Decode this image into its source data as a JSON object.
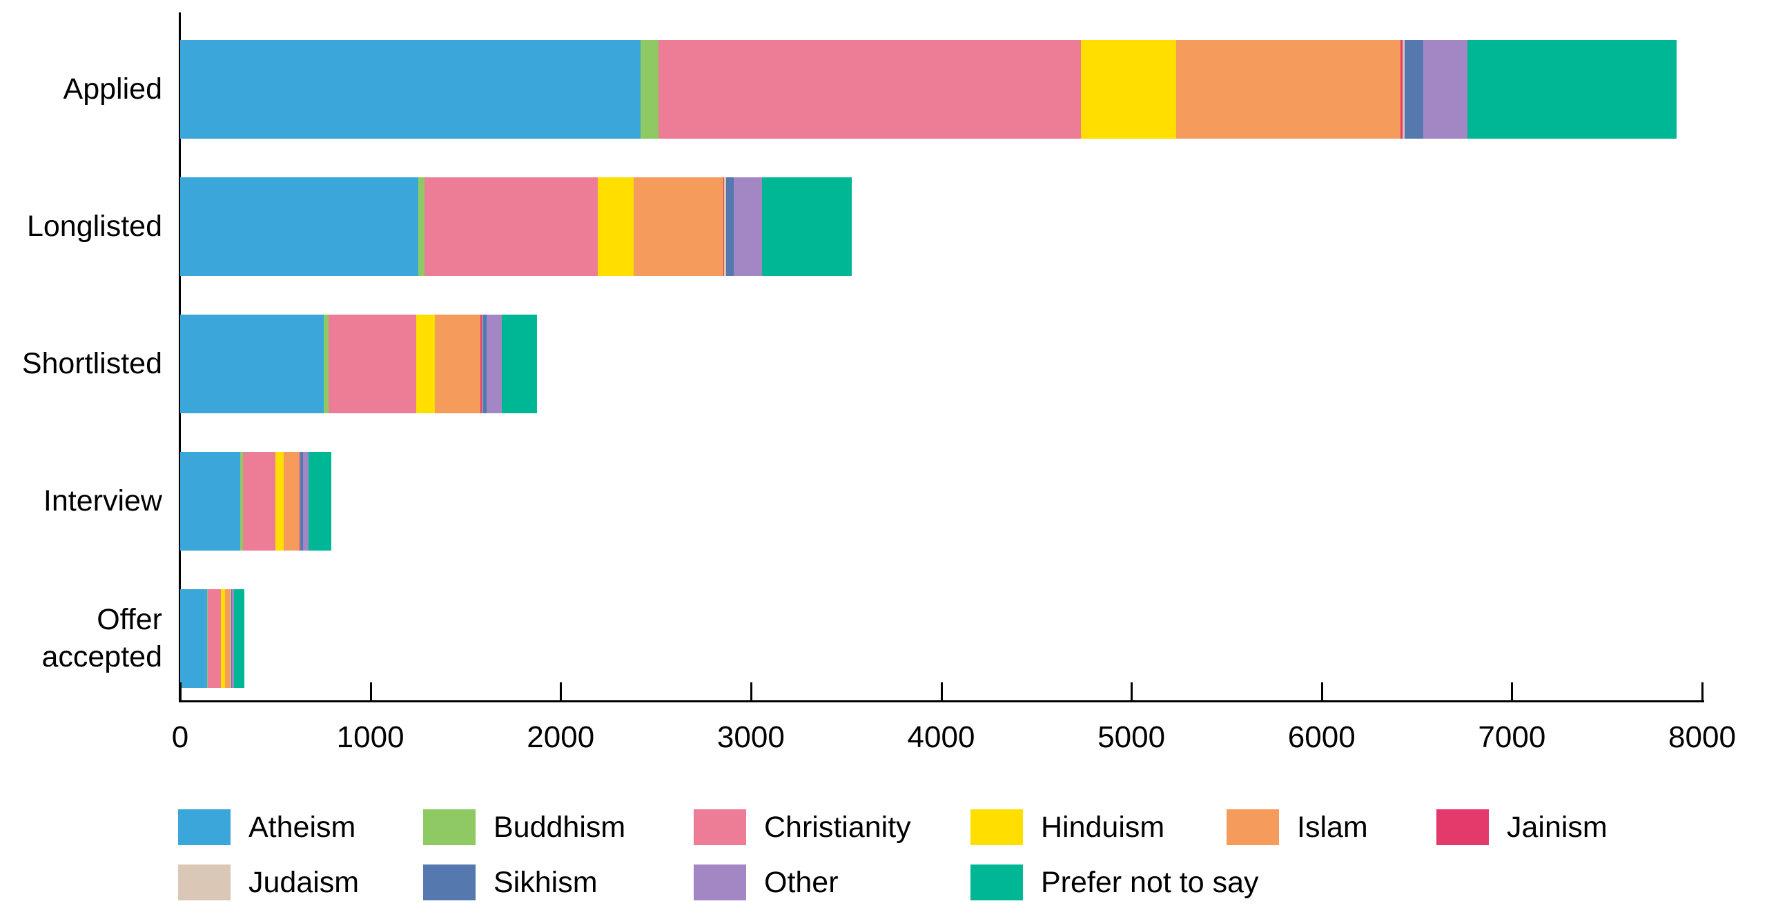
{
  "chart_data": {
    "type": "bar",
    "orientation": "horizontal",
    "stacked": true,
    "title": "",
    "xlabel": "",
    "ylabel": "",
    "grid": false,
    "legend_position": "bottom",
    "xlim": [
      0,
      8000
    ],
    "xticks": [
      0,
      1000,
      2000,
      3000,
      4000,
      5000,
      6000,
      7000,
      8000
    ],
    "xtick_labels": [
      "0",
      "1000",
      "2000",
      "3000",
      "4000",
      "5000",
      "6000",
      "7000",
      "8000"
    ],
    "categories": [
      "Applied",
      "Longlisted",
      "Shortlisted",
      "Interview",
      "Offer accepted"
    ],
    "series": [
      {
        "name": "Atheism",
        "color": "#3BA6D9",
        "values": [
          2420,
          1250,
          755,
          315,
          140
        ]
      },
      {
        "name": "Buddhism",
        "color": "#8FC964",
        "values": [
          95,
          35,
          25,
          15,
          5
        ]
      },
      {
        "name": "Christianity",
        "color": "#ED7D96",
        "values": [
          2220,
          910,
          460,
          170,
          70
        ]
      },
      {
        "name": "Hinduism",
        "color": "#FFDE00",
        "values": [
          500,
          190,
          100,
          45,
          20
        ]
      },
      {
        "name": "Islam",
        "color": "#F59C5C",
        "values": [
          1180,
          470,
          240,
          80,
          30
        ]
      },
      {
        "name": "Jainism",
        "color": "#E33A6B",
        "values": [
          10,
          5,
          5,
          2,
          1
        ]
      },
      {
        "name": "Judaism",
        "color": "#DAC7B6",
        "values": [
          10,
          10,
          5,
          3,
          2
        ]
      },
      {
        "name": "Sikhism",
        "color": "#5578AE",
        "values": [
          100,
          40,
          20,
          15,
          5
        ]
      },
      {
        "name": "Other",
        "color": "#A287C4",
        "values": [
          230,
          150,
          80,
          30,
          10
        ]
      },
      {
        "name": "Prefer not to say",
        "color": "#00B795",
        "values": [
          1100,
          470,
          185,
          120,
          55
        ]
      }
    ],
    "axis_color": "#000000",
    "text_color": "#000000",
    "background_color": "#FFFFFF"
  }
}
